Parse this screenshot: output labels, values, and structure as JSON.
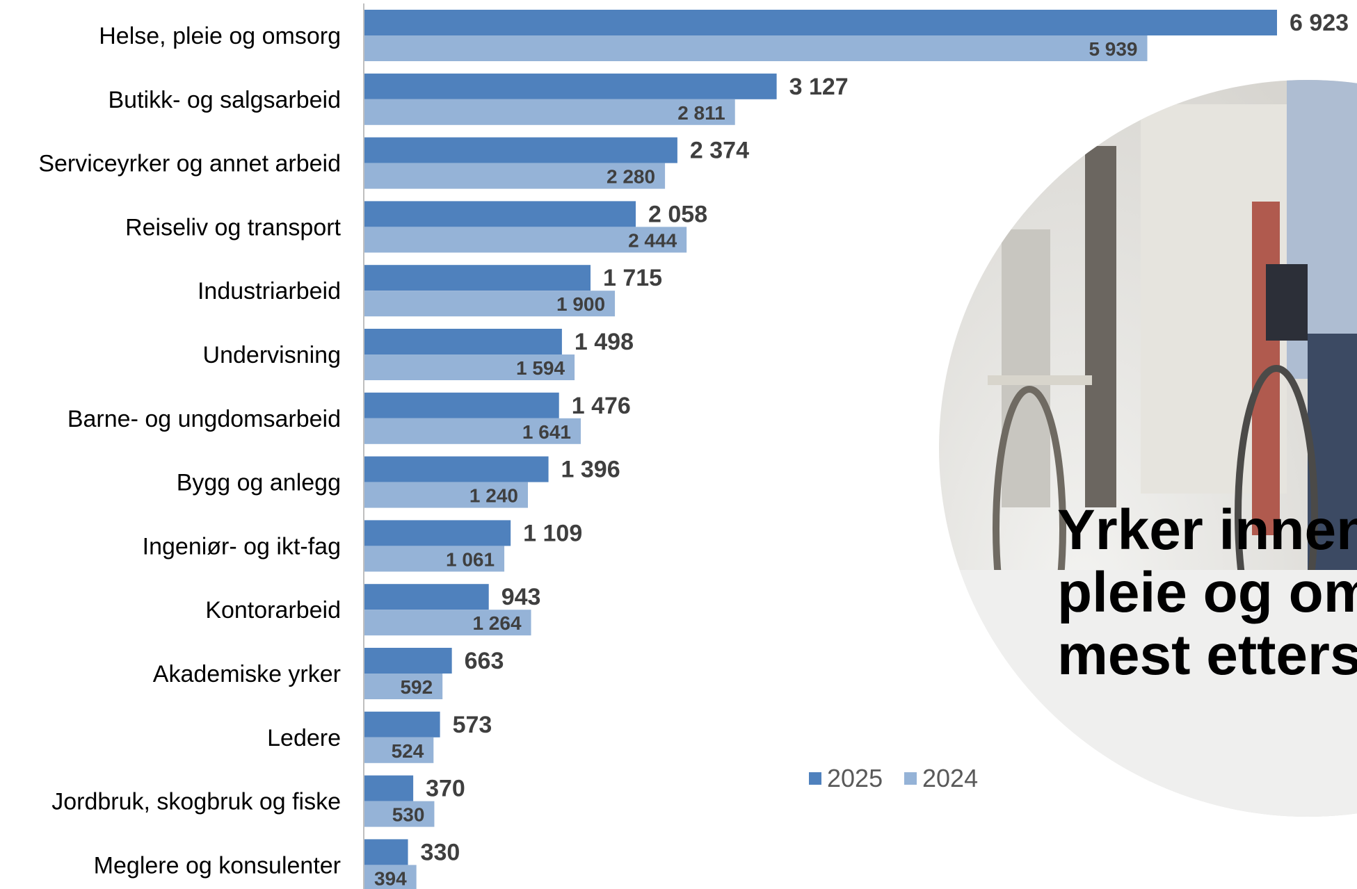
{
  "colors": {
    "series_2025": "#4f81bd",
    "series_2024": "#95b3d7"
  },
  "headline": {
    "lines": [
      "Yrker innen",
      "pleie og om",
      "mest etters"
    ]
  },
  "chart_data": {
    "type": "bar",
    "orientation": "horizontal",
    "categories": [
      "Helse, pleie og omsorg",
      "Butikk- og salgsarbeid",
      "Serviceyrker og annet arbeid",
      "Reiseliv og transport",
      "Industriarbeid",
      "Undervisning",
      "Barne- og ungdomsarbeid",
      "Bygg og anlegg",
      "Ingeniør- og ikt-fag",
      "Kontorarbeid",
      "Akademiske yrker",
      "Ledere",
      "Jordbruk, skogbruk og fiske",
      "Meglere og konsulenter"
    ],
    "series": [
      {
        "name": "2025",
        "values": [
          6923,
          3127,
          2374,
          2058,
          1715,
          1498,
          1476,
          1396,
          1109,
          943,
          663,
          573,
          370,
          330
        ],
        "labels": [
          "6 923",
          "3 127",
          "2 374",
          "2 058",
          "1 715",
          "1 498",
          "1 476",
          "1 396",
          "1 109",
          "943",
          "663",
          "573",
          "370",
          "330"
        ]
      },
      {
        "name": "2024",
        "values": [
          5939,
          2811,
          2280,
          2444,
          1900,
          1594,
          1641,
          1240,
          1061,
          1264,
          592,
          524,
          530,
          394
        ],
        "labels": [
          "5 939",
          "2 811",
          "2 280",
          "2 444",
          "1 900",
          "1 594",
          "1 641",
          "1 240",
          "1 061",
          "1 264",
          "592",
          "524",
          "530",
          "394"
        ]
      }
    ],
    "title": "",
    "xlabel": "",
    "ylabel": "",
    "grid": false,
    "legend": "bottom-right",
    "xlim": [
      0,
      6923
    ]
  }
}
